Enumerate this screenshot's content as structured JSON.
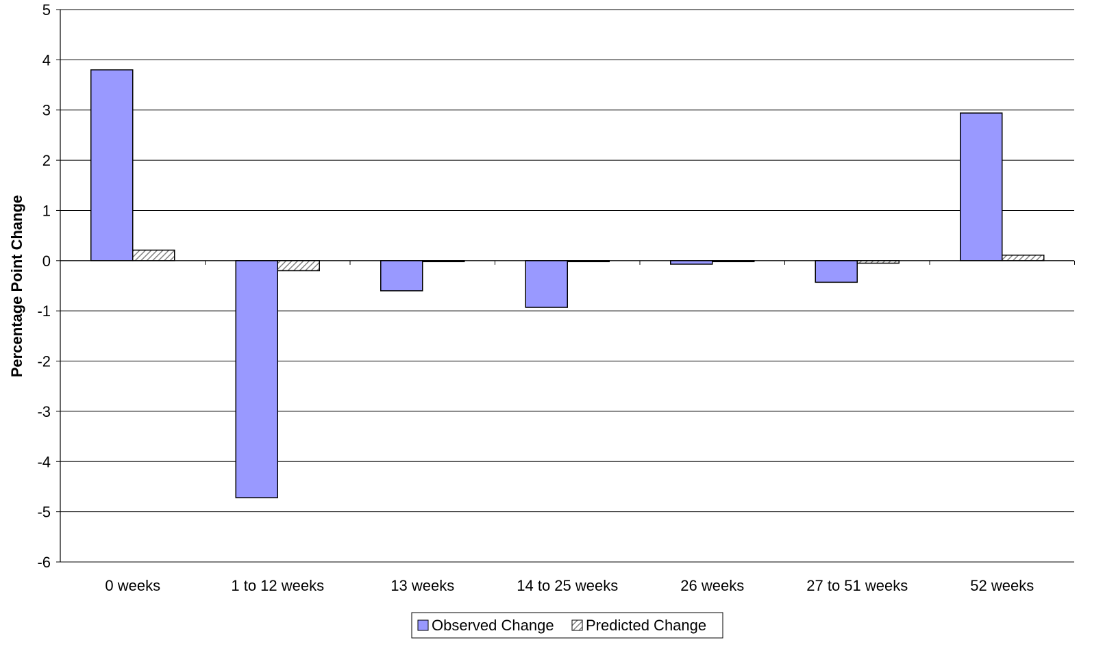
{
  "chart_data": {
    "type": "bar",
    "title": "",
    "xlabel": "",
    "ylabel": "Percentage Point Change",
    "ylim": [
      -6,
      5
    ],
    "yticks": [
      5,
      4,
      3,
      2,
      1,
      0,
      -1,
      -2,
      -3,
      -4,
      -5,
      -6
    ],
    "grid": true,
    "legend_position": "bottom",
    "categories": [
      "0 weeks",
      "1 to 12 weeks",
      "13 weeks",
      "14 to 25 weeks",
      "26 weeks",
      "27 to 51 weeks",
      "52 weeks"
    ],
    "series": [
      {
        "name": "Observed Change",
        "values": [
          3.8,
          -4.72,
          -0.6,
          -0.93,
          -0.07,
          -0.43,
          2.94
        ],
        "color": "#9999ff",
        "pattern": "solid"
      },
      {
        "name": "Predicted Change",
        "values": [
          0.21,
          -0.2,
          -0.01,
          -0.01,
          -0.02,
          -0.05,
          0.11
        ],
        "color": "#c0c0c0",
        "pattern": "diagonal-hatch"
      }
    ]
  }
}
